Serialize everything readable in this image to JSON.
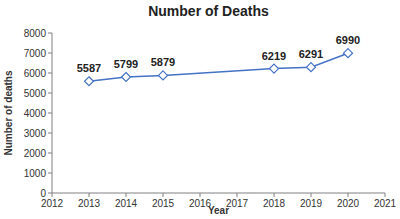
{
  "chart_data": {
    "type": "line",
    "title": "Number of Deaths",
    "x_label": "Year",
    "y_label": "Number of deaths",
    "x": [
      2013,
      2014,
      2015,
      2018,
      2019,
      2020
    ],
    "values": [
      5587,
      5799,
      5879,
      6219,
      6291,
      6990
    ],
    "color": "#4472c4",
    "marker": "diamond",
    "line_style": "solid",
    "data_labels": true,
    "grid": false,
    "xlim": [
      2012,
      2021
    ],
    "xticks": [
      2012,
      2013,
      2014,
      2015,
      2016,
      2017,
      2018,
      2019,
      2020,
      2021
    ],
    "ylim": [
      0,
      8000
    ],
    "yticks": [
      0,
      1000,
      2000,
      3000,
      4000,
      5000,
      6000,
      7000,
      8000
    ]
  }
}
